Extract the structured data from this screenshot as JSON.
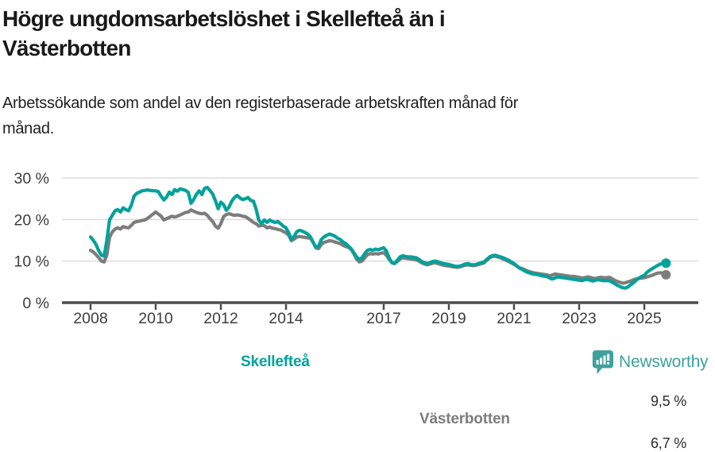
{
  "header": {
    "title": "Högre ungdomsarbetslöshet i Skellefteå än i\nVästerbotten",
    "subtitle": "Arbetssökande som andel av den registerbaserade arbetskraften månad för\nmånad."
  },
  "footer": {
    "brand": "Newsworthy",
    "brand_color": "#3ea19c",
    "logo_icon": "newsworthy-speech-bubble-bar-chart"
  },
  "colors": {
    "accent_teal": "#00a29a",
    "series_gray": "#7d7d7d",
    "gridline": "#dcdcdc",
    "axis": "#4c4c4c",
    "tick_text": "#3d3d3d",
    "value_text": "#2a2a2a"
  },
  "chart_data": {
    "type": "line",
    "title": "Högre ungdomsarbetslöshet i Skellefteå än i\nVästerbotten",
    "subtitle": "Arbetssökande som andel av den registerbaserade arbetskraften månad för\nmånad.",
    "grid": true,
    "legend_position": "inline-labels",
    "x_axis": {
      "frequency": "monthly",
      "range_start": "2008-01",
      "range_end": "2025-09",
      "tick_years": [
        2008,
        2010,
        2012,
        2014,
        2017,
        2019,
        2021,
        2023,
        2025
      ],
      "tick_labels": [
        "2008",
        "2010",
        "2012",
        "2014",
        "2017",
        "2019",
        "2021",
        "2023",
        "2025"
      ]
    },
    "y_axis": {
      "ticks": [
        0,
        10,
        20,
        30
      ],
      "tick_labels": [
        "0 %",
        "10 %",
        "20 %",
        "30 %"
      ],
      "suffix": " %",
      "ylim": [
        0,
        30
      ]
    },
    "series": [
      {
        "name": "Skellefteå",
        "color": "#00a29a",
        "end_label": "9,5 %",
        "last_value": 9.5,
        "values": [
          15.8,
          15.0,
          14.0,
          12.5,
          11.4,
          11.2,
          15.0,
          19.9,
          21.0,
          22.1,
          22.4,
          21.8,
          22.8,
          22.4,
          22.1,
          23.4,
          25.6,
          26.3,
          26.6,
          26.9,
          27.0,
          27.1,
          27.0,
          26.9,
          26.9,
          26.7,
          25.6,
          24.7,
          25.4,
          26.6,
          26.0,
          27.2,
          26.8,
          27.4,
          27.2,
          27.0,
          26.5,
          23.9,
          24.8,
          26.1,
          26.9,
          26.0,
          27.5,
          27.7,
          27.0,
          26.1,
          24.5,
          22.6,
          24.2,
          23.6,
          22.2,
          23.0,
          24.4,
          25.3,
          25.8,
          25.2,
          24.8,
          25.0,
          25.3,
          24.6,
          24.4,
          22.5,
          19.8,
          19.0,
          19.9,
          19.3,
          19.9,
          19.5,
          19.3,
          19.5,
          19.0,
          18.4,
          18.0,
          16.8,
          15.2,
          16.0,
          17.1,
          17.4,
          17.2,
          16.9,
          16.5,
          15.8,
          14.5,
          13.3,
          13.6,
          15.2,
          15.8,
          16.2,
          16.5,
          16.3,
          16.0,
          15.5,
          15.2,
          14.6,
          14.2,
          13.6,
          13.0,
          12.0,
          11.0,
          10.4,
          10.8,
          11.8,
          12.6,
          12.8,
          12.6,
          12.9,
          12.7,
          13.0,
          13.2,
          12.4,
          10.8,
          9.6,
          9.4,
          10.2,
          11.0,
          11.3,
          11.1,
          11.0,
          11.0,
          10.9,
          10.8,
          10.4,
          9.9,
          9.6,
          9.4,
          9.6,
          9.9,
          10.0,
          9.8,
          9.6,
          9.4,
          9.3,
          9.2,
          9.0,
          8.8,
          8.7,
          8.8,
          9.0,
          9.3,
          9.4,
          9.2,
          9.1,
          9.2,
          9.4,
          9.6,
          9.8,
          10.4,
          11.0,
          11.3,
          11.4,
          11.2,
          11.0,
          10.8,
          10.5,
          10.2,
          9.8,
          9.4,
          8.9,
          8.3,
          8.0,
          7.6,
          7.3,
          7.1,
          6.9,
          6.8,
          6.7,
          6.5,
          6.4,
          6.3,
          6.0,
          5.7,
          5.9,
          6.2,
          6.1,
          6.0,
          5.9,
          5.8,
          5.7,
          5.6,
          5.5,
          5.4,
          5.3,
          5.5,
          5.6,
          5.4,
          5.2,
          5.4,
          5.5,
          5.4,
          5.3,
          5.3,
          5.3,
          5.0,
          4.6,
          4.2,
          3.9,
          3.6,
          3.5,
          3.8,
          4.3,
          4.8,
          5.4,
          5.9,
          6.3,
          6.6,
          7.3,
          7.8,
          8.2,
          8.6,
          9.0,
          9.3,
          9.4,
          9.5
        ]
      },
      {
        "name": "Västerbotten",
        "color": "#7d7d7d",
        "end_label": "6,7 %",
        "last_value": 6.7,
        "values": [
          12.6,
          12.2,
          11.6,
          10.8,
          10.0,
          9.8,
          11.5,
          15.7,
          17.0,
          17.7,
          18.0,
          17.7,
          18.3,
          18.1,
          18.0,
          18.6,
          19.3,
          19.5,
          19.6,
          19.8,
          19.9,
          20.3,
          20.8,
          21.3,
          21.8,
          21.3,
          20.8,
          19.9,
          20.2,
          20.5,
          20.8,
          20.6,
          20.8,
          21.1,
          21.4,
          21.7,
          21.8,
          22.3,
          22.0,
          21.7,
          21.5,
          21.4,
          21.5,
          21.0,
          20.2,
          19.5,
          18.4,
          17.9,
          19.0,
          20.7,
          21.2,
          21.4,
          21.2,
          21.0,
          21.1,
          21.0,
          20.8,
          20.7,
          20.3,
          19.8,
          19.3,
          19.0,
          18.4,
          18.6,
          18.5,
          18.0,
          18.2,
          17.9,
          17.8,
          17.6,
          17.5,
          17.1,
          16.8,
          16.2,
          14.9,
          15.3,
          15.8,
          15.9,
          15.8,
          15.7,
          15.6,
          15.5,
          14.5,
          13.2,
          13.0,
          14.0,
          14.5,
          14.7,
          14.9,
          14.8,
          14.6,
          14.4,
          14.2,
          13.8,
          13.5,
          13.3,
          12.8,
          11.8,
          10.5,
          9.8,
          10.0,
          10.8,
          11.5,
          11.8,
          11.7,
          11.8,
          11.7,
          11.9,
          12.0,
          11.4,
          10.4,
          9.7,
          9.5,
          9.9,
          10.5,
          10.8,
          10.7,
          10.6,
          10.5,
          10.4,
          10.3,
          10.0,
          9.6,
          9.3,
          9.1,
          9.3,
          9.5,
          9.6,
          9.4,
          9.2,
          9.0,
          8.9,
          8.8,
          8.7,
          8.6,
          8.5,
          8.6,
          8.8,
          9.0,
          9.1,
          9.0,
          8.9,
          9.0,
          9.2,
          9.4,
          9.6,
          10.2,
          10.8,
          11.1,
          11.2,
          11.0,
          10.8,
          10.5,
          10.2,
          9.9,
          9.6,
          9.2,
          8.8,
          8.4,
          8.2,
          7.9,
          7.6,
          7.4,
          7.2,
          7.1,
          7.0,
          6.9,
          6.8,
          6.7,
          6.5,
          6.6,
          6.9,
          6.8,
          6.7,
          6.6,
          6.5,
          6.4,
          6.3,
          6.3,
          6.2,
          6.1,
          5.9,
          6.0,
          6.2,
          6.1,
          5.9,
          5.8,
          6.0,
          6.1,
          6.0,
          6.0,
          6.1,
          5.8,
          5.4,
          5.1,
          4.9,
          4.7,
          4.8,
          5.0,
          5.2,
          5.5,
          5.7,
          5.8,
          5.9,
          6.0,
          6.2,
          6.4,
          6.6,
          6.9,
          7.1,
          7.2,
          7.0,
          6.7
        ]
      }
    ]
  }
}
